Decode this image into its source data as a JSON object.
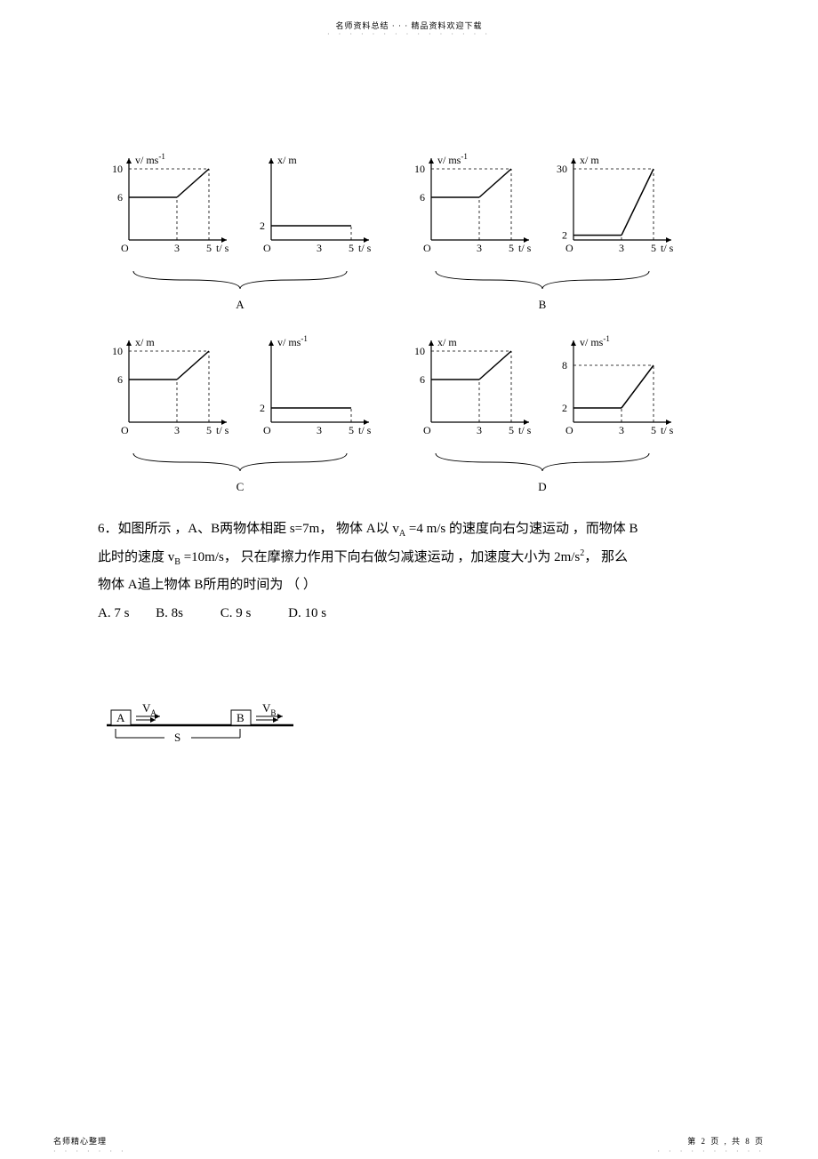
{
  "header": {
    "text": "名师资料总结 · · · 精品资料欢迎下载",
    "dots": "· · · · · · · · · · · · · · ·"
  },
  "footer": {
    "left": "名师精心整理",
    "left_dots": "· · · · · · ·",
    "right": "第 2 页 , 共 8 页",
    "right_dots": "· · · · · · · · · ·"
  },
  "graphs": {
    "axis_color": "#000",
    "dash_color": "#000",
    "row1": [
      {
        "group": "A",
        "left": {
          "y_label": "v/ ms",
          "y_sup": "-1",
          "x_label": "t/ s",
          "y_ticks": [
            {
              "v": 6,
              "l": "6"
            },
            {
              "v": 10,
              "l": "10"
            }
          ],
          "x_ticks": [
            {
              "v": 3,
              "l": "3"
            },
            {
              "v": 5,
              "l": "5"
            }
          ],
          "segments": [
            [
              0,
              6,
              3,
              6
            ],
            [
              3,
              6,
              5,
              10
            ]
          ],
          "dashes": [
            [
              0,
              10,
              5,
              10
            ],
            [
              5,
              0,
              5,
              10
            ],
            [
              3,
              0,
              3,
              6
            ]
          ]
        },
        "right": {
          "y_label": "x/ m",
          "x_label": "t/ s",
          "y_ticks": [
            {
              "v": 2,
              "l": "2"
            }
          ],
          "x_ticks": [
            {
              "v": 3,
              "l": "3"
            },
            {
              "v": 5,
              "l": "5"
            }
          ],
          "segments": [
            [
              0,
              2,
              5,
              2
            ]
          ],
          "dashes": [
            [
              5,
              0,
              5,
              2
            ]
          ]
        }
      },
      {
        "group": "B",
        "left": {
          "y_label": "v/ ms",
          "y_sup": "-1",
          "x_label": "t/ s",
          "y_ticks": [
            {
              "v": 6,
              "l": "6"
            },
            {
              "v": 10,
              "l": "10"
            }
          ],
          "x_ticks": [
            {
              "v": 3,
              "l": "3"
            },
            {
              "v": 5,
              "l": "5"
            }
          ],
          "segments": [
            [
              0,
              6,
              3,
              6
            ],
            [
              3,
              6,
              5,
              10
            ]
          ],
          "dashes": [
            [
              0,
              10,
              5,
              10
            ],
            [
              5,
              0,
              5,
              10
            ],
            [
              3,
              0,
              3,
              6
            ]
          ]
        },
        "right": {
          "y_label": "x/ m",
          "x_label": "t/ s",
          "y_ticks": [
            {
              "v": 2,
              "l": "2"
            },
            {
              "v": 30,
              "l": "30"
            }
          ],
          "x_ticks": [
            {
              "v": 3,
              "l": "3"
            },
            {
              "v": 5,
              "l": "5"
            }
          ],
          "segments": [
            [
              0,
              2,
              3,
              2
            ],
            [
              3,
              2,
              5,
              30
            ]
          ],
          "dashes": [
            [
              5,
              0,
              5,
              30
            ],
            [
              0,
              30,
              5,
              30
            ],
            [
              3,
              0,
              3,
              2
            ]
          ]
        }
      }
    ],
    "row2": [
      {
        "group": "C",
        "left": {
          "y_label": "x/ m",
          "x_label": "t/ s",
          "y_ticks": [
            {
              "v": 6,
              "l": "6"
            },
            {
              "v": 10,
              "l": "10"
            }
          ],
          "x_ticks": [
            {
              "v": 3,
              "l": "3"
            },
            {
              "v": 5,
              "l": "5"
            }
          ],
          "segments": [
            [
              0,
              6,
              3,
              6
            ],
            [
              3,
              6,
              5,
              10
            ]
          ],
          "dashes": [
            [
              0,
              10,
              5,
              10
            ],
            [
              5,
              0,
              5,
              10
            ],
            [
              3,
              0,
              3,
              6
            ]
          ]
        },
        "right": {
          "y_label": "v/ ms",
          "y_sup": "-1",
          "x_label": "t/ s",
          "y_ticks": [
            {
              "v": 2,
              "l": "2"
            }
          ],
          "x_ticks": [
            {
              "v": 3,
              "l": "3"
            },
            {
              "v": 5,
              "l": "5"
            }
          ],
          "segments": [
            [
              0,
              2,
              5,
              2
            ]
          ],
          "dashes": [
            [
              5,
              0,
              5,
              2
            ]
          ]
        }
      },
      {
        "group": "D",
        "left": {
          "y_label": "x/ m",
          "x_label": "t/ s",
          "y_ticks": [
            {
              "v": 6,
              "l": "6"
            },
            {
              "v": 10,
              "l": "10"
            }
          ],
          "x_ticks": [
            {
              "v": 3,
              "l": "3"
            },
            {
              "v": 5,
              "l": "5"
            }
          ],
          "segments": [
            [
              0,
              6,
              3,
              6
            ],
            [
              3,
              6,
              5,
              10
            ]
          ],
          "dashes": [
            [
              0,
              10,
              5,
              10
            ],
            [
              5,
              0,
              5,
              10
            ],
            [
              3,
              0,
              3,
              6
            ]
          ]
        },
        "right": {
          "y_label": "v/ ms",
          "y_sup": "-1",
          "x_label": "t/ s",
          "y_ticks": [
            {
              "v": 2,
              "l": "2"
            },
            {
              "v": 8,
              "l": "8"
            }
          ],
          "x_ticks": [
            {
              "v": 3,
              "l": "3"
            },
            {
              "v": 5,
              "l": "5"
            }
          ],
          "segments": [
            [
              0,
              2,
              3,
              2
            ],
            [
              3,
              2,
              5,
              8
            ]
          ],
          "dashes": [
            [
              5,
              0,
              5,
              8
            ],
            [
              0,
              8,
              5,
              8
            ],
            [
              3,
              0,
              3,
              2
            ]
          ]
        }
      }
    ]
  },
  "q6": {
    "line1a": "6．如图所示 ，A、B两物体相距  s=7m， 物体 A以 v",
    "line1b": " =4 m/s 的速度向右匀速运动 ，而物体 B",
    "line2a": "此时的速度 v",
    "line2b": " =10m/s， 只在摩擦力作用下向右做匀减速运动    ，加速度大小为 2m/s",
    "line2c": "， 那么",
    "line3": "物体 A追上物体 B所用的时间为 （       ）",
    "optA": "A. 7 s",
    "optB": "B. 8s",
    "optC": "C. 9 s",
    "optD": "D. 10 s",
    "sub_A": "A",
    "sub_B": "B",
    "sup_2": "2",
    "diagram": {
      "A": "A",
      "B": "B",
      "VA": "V",
      "VB": "V",
      "S": "S",
      "subA": "A",
      "subB": "B"
    }
  }
}
